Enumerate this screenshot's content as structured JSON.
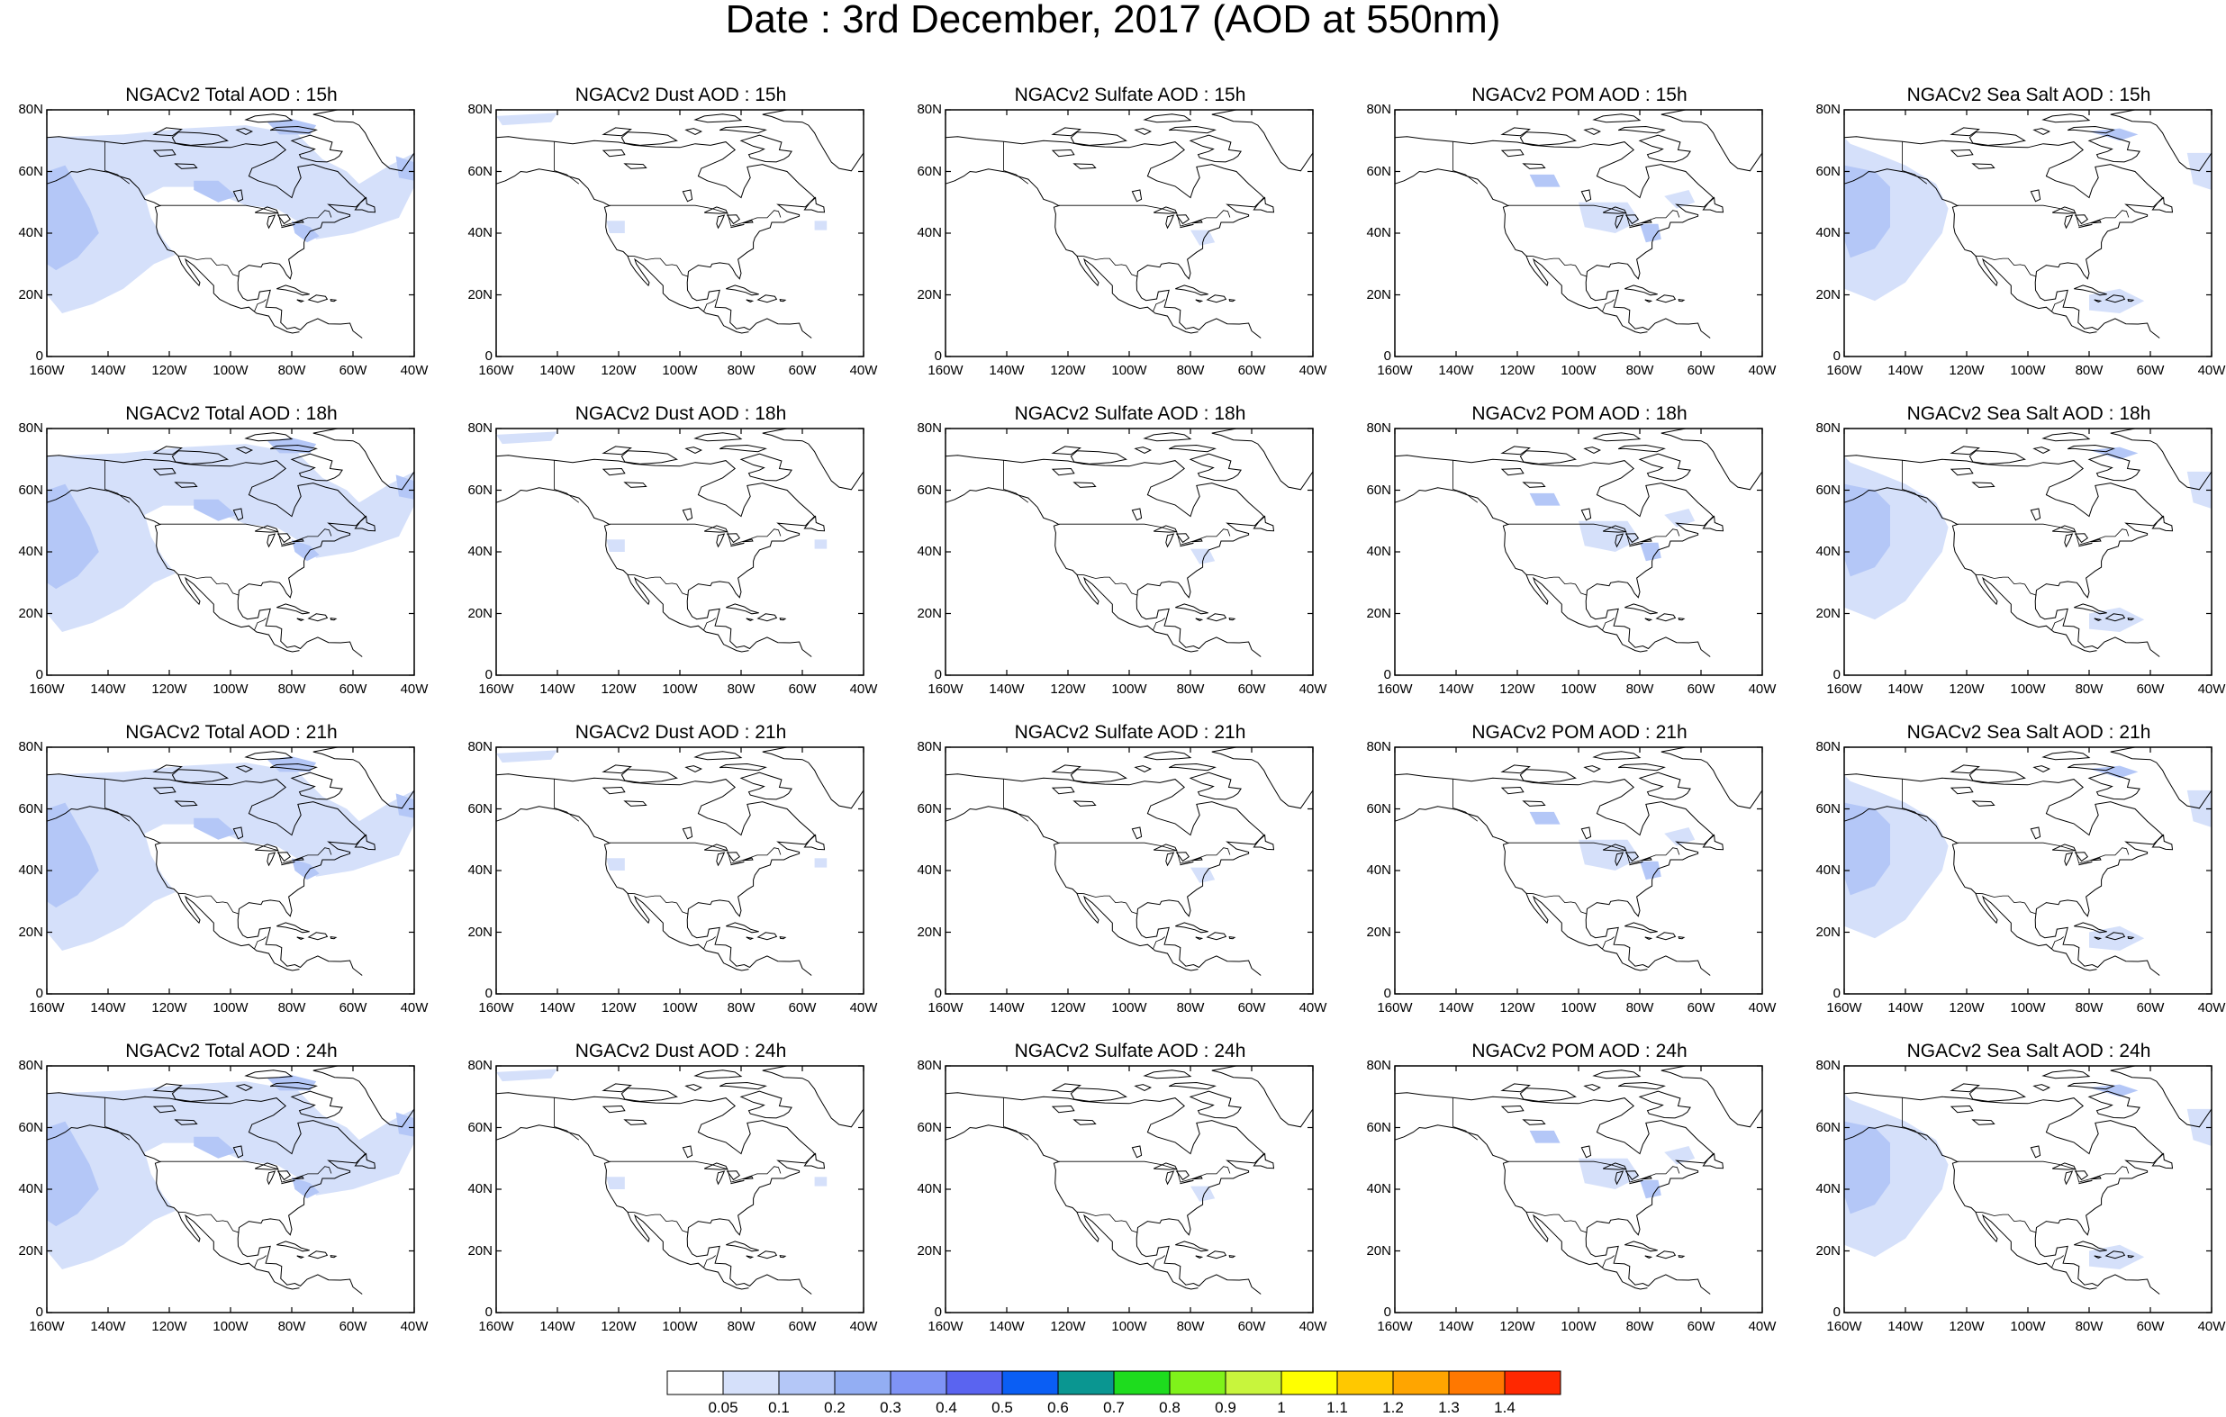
{
  "title": "Date : 3rd December, 2017 (AOD at 550nm)",
  "lat_labels": [
    "80N",
    "60N",
    "40N",
    "20N",
    "0"
  ],
  "lon_labels": [
    "160W",
    "140W",
    "120W",
    "100W",
    "80W",
    "60W",
    "40W"
  ],
  "panels": [
    {
      "title": "NGACv2 Total AOD : 15h",
      "field": "total"
    },
    {
      "title": "NGACv2 Dust AOD : 15h",
      "field": "dust"
    },
    {
      "title": "NGACv2 Sulfate AOD : 15h",
      "field": "sulfate"
    },
    {
      "title": "NGACv2 POM AOD : 15h",
      "field": "pom"
    },
    {
      "title": "NGACv2 Sea Salt AOD : 15h",
      "field": "seasalt"
    },
    {
      "title": "NGACv2 Total AOD : 18h",
      "field": "total"
    },
    {
      "title": "NGACv2 Dust AOD : 18h",
      "field": "dust"
    },
    {
      "title": "NGACv2 Sulfate AOD : 18h",
      "field": "sulfate"
    },
    {
      "title": "NGACv2 POM AOD : 18h",
      "field": "pom"
    },
    {
      "title": "NGACv2 Sea Salt AOD : 18h",
      "field": "seasalt"
    },
    {
      "title": "NGACv2 Total AOD : 21h",
      "field": "total"
    },
    {
      "title": "NGACv2 Dust AOD : 21h",
      "field": "dust"
    },
    {
      "title": "NGACv2 Sulfate AOD : 21h",
      "field": "sulfate"
    },
    {
      "title": "NGACv2 POM AOD : 21h",
      "field": "pom"
    },
    {
      "title": "NGACv2 Sea Salt AOD : 21h",
      "field": "seasalt"
    },
    {
      "title": "NGACv2 Total AOD : 24h",
      "field": "total"
    },
    {
      "title": "NGACv2 Dust AOD : 24h",
      "field": "dust"
    },
    {
      "title": "NGACv2 Sulfate AOD : 24h",
      "field": "sulfate"
    },
    {
      "title": "NGACv2 POM AOD : 24h",
      "field": "pom"
    },
    {
      "title": "NGACv2 Sea Salt  AOD : 24h",
      "field": "seasalt"
    }
  ],
  "colorbar": {
    "labels": [
      "0.05",
      "0.1",
      "0.2",
      "0.3",
      "0.4",
      "0.5",
      "0.6",
      "0.7",
      "0.8",
      "0.9",
      "1",
      "1.1",
      "1.2",
      "1.3",
      "1.4"
    ],
    "colors": [
      "#ffffff",
      "#d5e0fa",
      "#b4c7f7",
      "#93aef3",
      "#7f93f5",
      "#5a64f0",
      "#0a5ef4",
      "#0a9691",
      "#1edc1e",
      "#7ff21a",
      "#c8f53c",
      "#ffff00",
      "#ffc800",
      "#ffa500",
      "#ff7800",
      "#ff2800"
    ]
  },
  "aod_colors": {
    "light": "#d5e0fa",
    "mid": "#b4c7f7",
    "strong": "#93aef3"
  }
}
